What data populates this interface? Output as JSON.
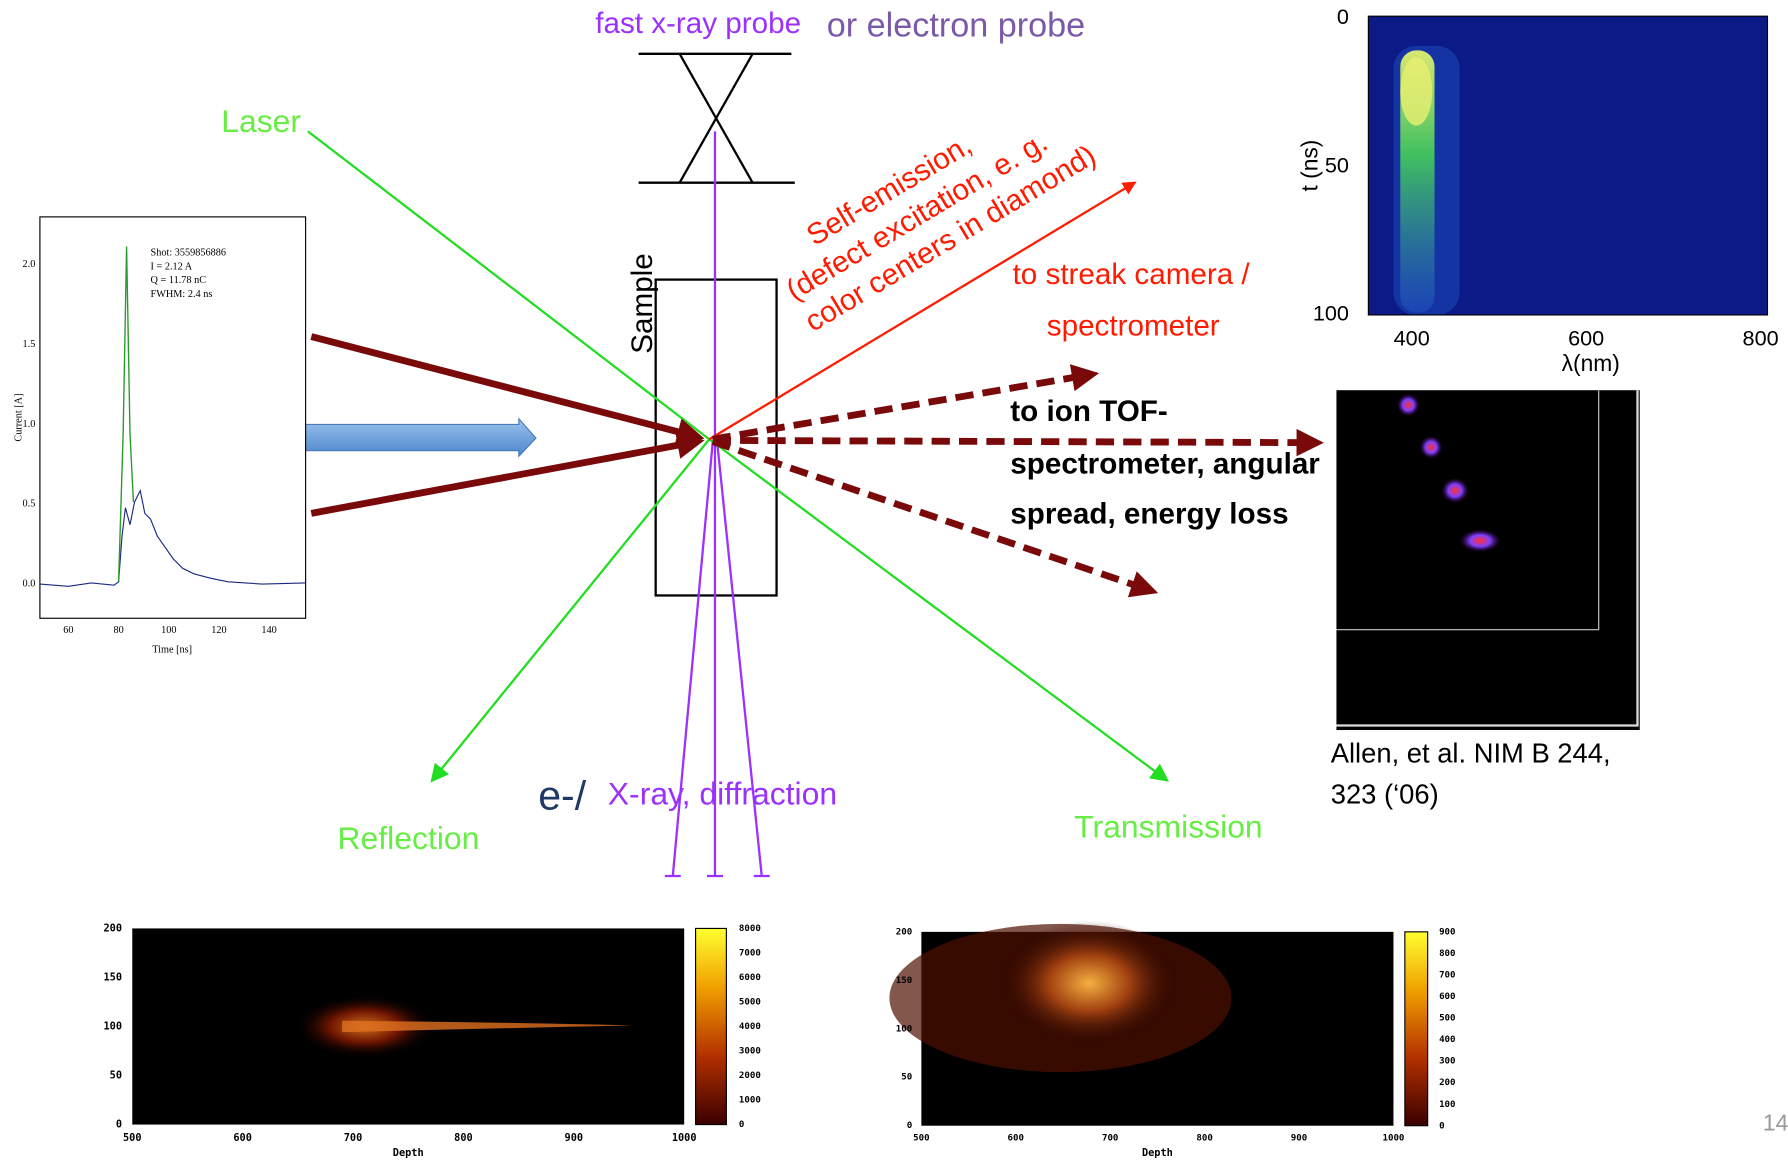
{
  "header": {
    "probe": "fast x-ray probe",
    "probe_alt": "or electron probe"
  },
  "labels": {
    "laser": "Laser",
    "sample": "Sample",
    "self_emission": [
      "Self-emission,",
      "(defect excitation, e. g.",
      "color centers in diamond)"
    ],
    "streak": [
      "to streak camera /",
      "spectrometer"
    ],
    "ion": [
      "to ion TOF-",
      "spectrometer, angular",
      "spread, energy loss"
    ],
    "citation": [
      "Allen, et al. NIM B 244,",
      "323 (‘06)"
    ],
    "electron": "e-/",
    "xray": "X-ray, diffraction",
    "reflection": "Reflection",
    "transmission": "Transmission",
    "page": "14"
  },
  "current_plot": {
    "annotation": [
      "Shot: 3559856886",
      "I = 2.12 A",
      "Q = 11.78 nC",
      "FWHM: 2.4 ns"
    ],
    "y_label": "Current [A]",
    "x_label": "Time [ns]",
    "yticks": [
      "2.0",
      "1.5",
      "1.0",
      "0.5",
      "0.0"
    ],
    "xticks": [
      "60",
      "80",
      "100",
      "120",
      "140"
    ]
  },
  "streak_plot": {
    "y_label": "t (ns)",
    "x_label": "λ(nm)",
    "yticks": [
      "0",
      "50",
      "100"
    ],
    "xticks": [
      "400",
      "600",
      "800"
    ]
  },
  "depth_plots": [
    {
      "x_label": "Depth",
      "yticks": [
        "200",
        "150",
        "100",
        "50",
        "0"
      ],
      "xticks": [
        "500",
        "600",
        "700",
        "800",
        "900",
        "1000"
      ],
      "cticks": [
        "8000",
        "7000",
        "6000",
        "5000",
        "4000",
        "3000",
        "2000",
        "1000",
        "0"
      ]
    },
    {
      "x_label": "Depth",
      "yticks": [
        "200",
        "150",
        "100",
        "50",
        "0"
      ],
      "xticks": [
        "500",
        "600",
        "700",
        "800",
        "900",
        "1000"
      ],
      "cticks": [
        "900",
        "800",
        "700",
        "600",
        "500",
        "400",
        "300",
        "200",
        "100",
        "0"
      ]
    }
  ]
}
